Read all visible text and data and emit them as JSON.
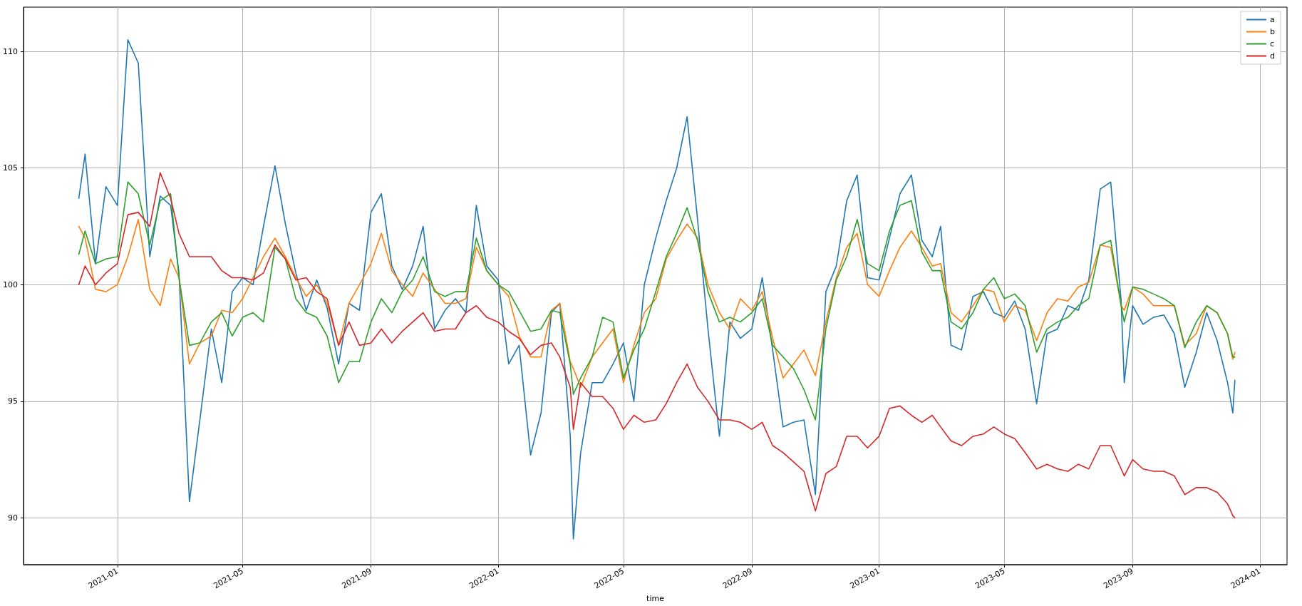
{
  "chart_data": {
    "type": "line",
    "xlabel": "time",
    "legend": "top right",
    "grid": true,
    "marker": "none",
    "line_style": "solid",
    "xlim": [
      "2020-10-03",
      "2024-01-27"
    ],
    "xticks": [
      "2021-01",
      "2021-05",
      "2021-09",
      "2022-01",
      "2022-05",
      "2022-09",
      "2023-01",
      "2023-05",
      "2023-09",
      "2024-01"
    ],
    "ylim": [
      88,
      111.9
    ],
    "yticks": [
      90,
      95,
      100,
      105,
      110
    ],
    "x": [
      "2020-11-25",
      "2020-12-01",
      "2020-12-11",
      "2020-12-21",
      "2021-01-01",
      "2021-01-11",
      "2021-01-21",
      "2021-02-01",
      "2021-02-11",
      "2021-02-21",
      "2021-03-01",
      "2021-03-11",
      "2021-03-21",
      "2021-04-01",
      "2021-04-11",
      "2021-04-21",
      "2021-05-01",
      "2021-05-11",
      "2021-05-21",
      "2021-06-01",
      "2021-06-11",
      "2021-06-21",
      "2021-07-01",
      "2021-07-11",
      "2021-07-21",
      "2021-08-01",
      "2021-08-11",
      "2021-08-21",
      "2021-09-01",
      "2021-09-11",
      "2021-09-21",
      "2021-10-01",
      "2021-10-11",
      "2021-10-21",
      "2021-11-01",
      "2021-11-11",
      "2021-11-21",
      "2021-12-01",
      "2021-12-11",
      "2021-12-21",
      "2022-01-01",
      "2022-01-11",
      "2022-01-21",
      "2022-02-01",
      "2022-02-11",
      "2022-02-21",
      "2022-03-01",
      "2022-03-11",
      "2022-03-14",
      "2022-03-21",
      "2022-04-01",
      "2022-04-11",
      "2022-04-21",
      "2022-05-01",
      "2022-05-11",
      "2022-05-21",
      "2022-06-01",
      "2022-06-11",
      "2022-06-21",
      "2022-07-01",
      "2022-07-11",
      "2022-07-21",
      "2022-08-01",
      "2022-08-11",
      "2022-08-21",
      "2022-09-01",
      "2022-09-11",
      "2022-09-21",
      "2022-10-01",
      "2022-10-11",
      "2022-10-21",
      "2022-11-01",
      "2022-11-11",
      "2022-11-21",
      "2022-12-01",
      "2022-12-11",
      "2022-12-21",
      "2023-01-01",
      "2023-01-11",
      "2023-01-21",
      "2023-02-01",
      "2023-02-11",
      "2023-02-21",
      "2023-03-01",
      "2023-03-11",
      "2023-03-21",
      "2023-04-01",
      "2023-04-11",
      "2023-04-21",
      "2023-05-01",
      "2023-05-11",
      "2023-05-21",
      "2023-06-01",
      "2023-06-11",
      "2023-06-21",
      "2023-07-01",
      "2023-07-11",
      "2023-07-21",
      "2023-08-01",
      "2023-08-11",
      "2023-08-21",
      "2023-08-24",
      "2023-09-01",
      "2023-09-11",
      "2023-09-21",
      "2023-10-01",
      "2023-10-11",
      "2023-10-21",
      "2023-11-01",
      "2023-11-11",
      "2023-11-21",
      "2023-12-01",
      "2023-12-06",
      "2023-12-08"
    ],
    "series": [
      {
        "name": "a",
        "color": "#1f77b4",
        "values": [
          103.7,
          105.6,
          100.9,
          104.2,
          103.4,
          110.5,
          109.5,
          101.2,
          103.8,
          103.4,
          100.5,
          90.7,
          94.2,
          98.1,
          95.8,
          99.7,
          100.3,
          100,
          102.5,
          105.1,
          102.6,
          100.5,
          98.9,
          100.2,
          99.0,
          96.6,
          99.2,
          98.9,
          103.1,
          103.9,
          100.8,
          99.8,
          100.8,
          102.5,
          98.1,
          98.9,
          99.4,
          98.8,
          103.4,
          100.8,
          100.2,
          96.6,
          97.4,
          92.7,
          94.5,
          98.8,
          99.2,
          93.5,
          89.1,
          92.8,
          95.8,
          95.8,
          96.6,
          97.5,
          95.0,
          100,
          102,
          103.6,
          105,
          107.2,
          102.8,
          98.1,
          93.5,
          98.4,
          97.7,
          98.1,
          100.3,
          97.2,
          93.9,
          94.1,
          94.2,
          91.0,
          99.7,
          100.8,
          103.6,
          104.7,
          100.3,
          100.2,
          102,
          103.9,
          104.7,
          101.9,
          101.2,
          102.5,
          97.4,
          97.2,
          99.5,
          99.7,
          98.8,
          98.6,
          99.3,
          98.1,
          94.9,
          97.9,
          98.1,
          99.1,
          98.9,
          100.2,
          104.1,
          104.4,
          99.3,
          95.8,
          99.1,
          98.3,
          98.6,
          98.7,
          97.9,
          95.6,
          97.1,
          98.8,
          97.6,
          95.8,
          94.5,
          95.9
        ]
      },
      {
        "name": "b",
        "color": "#ff7f0e",
        "values": [
          102.5,
          102.0,
          99.8,
          99.7,
          100,
          101.2,
          102.8,
          99.8,
          99.1,
          101.1,
          100.3,
          96.6,
          97.5,
          97.8,
          98.9,
          98.8,
          99.4,
          100.3,
          101.2,
          102.0,
          101.2,
          100.3,
          99.5,
          100,
          99.2,
          97.4,
          99.2,
          100,
          100.9,
          102.2,
          100.6,
          100,
          99.5,
          100.5,
          99.8,
          99.2,
          99.2,
          99.4,
          101.6,
          100.6,
          100,
          99.5,
          97.8,
          96.9,
          96.9,
          98.9,
          99.2,
          96.7,
          96.4,
          95.6,
          96.9,
          97.5,
          98.1,
          95.8,
          97.4,
          98.8,
          99.4,
          101.1,
          101.9,
          102.6,
          102,
          100,
          98.8,
          98.1,
          99.4,
          98.9,
          99.7,
          97.7,
          96.0,
          96.6,
          97.2,
          96.1,
          98.4,
          100.3,
          101.6,
          102.2,
          100,
          99.5,
          100.6,
          101.6,
          102.3,
          101.6,
          100.8,
          100.9,
          98.8,
          98.4,
          99.1,
          99.8,
          99.7,
          98.4,
          99.1,
          98.9,
          97.6,
          98.8,
          99.4,
          99.3,
          99.9,
          100.1,
          101.7,
          101.6,
          99.1,
          98.9,
          99.9,
          99.6,
          99.1,
          99.1,
          99.1,
          97.4,
          97.9,
          99.1,
          98.8,
          97.9,
          96.8,
          97.1
        ]
      },
      {
        "name": "c",
        "color": "#2ca02c",
        "values": [
          101.3,
          102.3,
          100.9,
          101.1,
          101.2,
          104.4,
          103.9,
          101.7,
          103.6,
          103.9,
          100.3,
          97.4,
          97.5,
          98.4,
          98.8,
          97.8,
          98.6,
          98.8,
          98.4,
          101.6,
          101.1,
          99.4,
          98.8,
          98.6,
          97.8,
          95.8,
          96.7,
          96.7,
          98.4,
          99.4,
          98.8,
          99.7,
          100.2,
          101.2,
          99.7,
          99.5,
          99.7,
          99.7,
          102,
          100.6,
          100,
          99.7,
          98.9,
          98.0,
          98.1,
          98.9,
          98.8,
          96.6,
          95.3,
          96.0,
          96.9,
          98.6,
          98.4,
          96.0,
          97.2,
          98.1,
          99.7,
          101.2,
          102.2,
          103.3,
          101.9,
          99.7,
          98.4,
          98.6,
          98.4,
          98.8,
          99.4,
          97.4,
          96.9,
          96.4,
          95.5,
          94.2,
          98.1,
          100.2,
          101.2,
          102.8,
          100.9,
          100.6,
          102.3,
          103.4,
          103.6,
          101.4,
          100.6,
          100.6,
          98.4,
          98.1,
          98.8,
          99.8,
          100.3,
          99.4,
          99.6,
          99.1,
          97.1,
          98.1,
          98.4,
          98.6,
          99.1,
          99.4,
          101.7,
          101.9,
          99.1,
          98.4,
          99.9,
          99.8,
          99.6,
          99.4,
          99.1,
          97.3,
          98.4,
          99.1,
          98.8,
          97.9,
          96.9,
          96.9
        ]
      },
      {
        "name": "d",
        "color": "#d62728",
        "values": [
          100,
          100.8,
          100,
          100.5,
          100.9,
          103.0,
          103.1,
          102.5,
          104.8,
          103.7,
          102.2,
          101.2,
          101.2,
          101.2,
          100.6,
          100.3,
          100.3,
          100.2,
          100.5,
          101.7,
          101.1,
          100.2,
          100.3,
          99.7,
          99.4,
          97.4,
          98.4,
          97.4,
          97.5,
          98.1,
          97.5,
          98.0,
          98.4,
          98.8,
          98.0,
          98.1,
          98.1,
          98.8,
          99.1,
          98.6,
          98.4,
          98.0,
          97.7,
          97.0,
          97.4,
          97.5,
          96.9,
          95.6,
          93.8,
          95.8,
          95.2,
          95.2,
          94.7,
          93.8,
          94.4,
          94.1,
          94.2,
          94.9,
          95.8,
          96.6,
          95.6,
          95.0,
          94.2,
          94.2,
          94.1,
          93.8,
          94.1,
          93.1,
          92.8,
          92.4,
          92.0,
          90.3,
          91.9,
          92.2,
          93.5,
          93.5,
          93.0,
          93.5,
          94.7,
          94.8,
          94.4,
          94.1,
          94.4,
          93.9,
          93.3,
          93.1,
          93.5,
          93.6,
          93.9,
          93.6,
          93.4,
          92.8,
          92.1,
          92.3,
          92.1,
          92.0,
          92.3,
          92.1,
          93.1,
          93.1,
          92.1,
          91.8,
          92.5,
          92.1,
          92.0,
          92.0,
          91.8,
          91.0,
          91.3,
          91.3,
          91.1,
          90.6,
          90.1,
          90.0
        ]
      }
    ]
  }
}
